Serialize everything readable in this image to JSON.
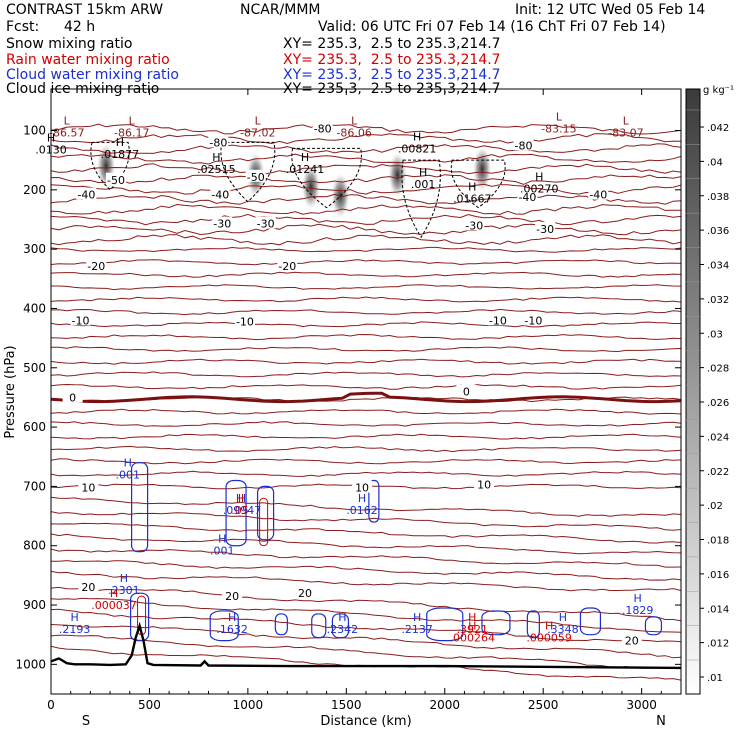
{
  "header": {
    "model": "CONTRAST 15km ARW",
    "org": "NCAR/MMM",
    "init": "Init: 12 UTC Wed 05 Feb 14",
    "fcst_label": "Fcst:",
    "fcst_value": "42 h",
    "valid": "Valid: 06 UTC Fri 07 Feb 14 (16 ChT Fri 07 Feb 14)"
  },
  "legend": [
    {
      "name": "Snow mixing ratio",
      "xy": "XY= 235.3,  2.5 to 235.3,214.7",
      "color": "#000000"
    },
    {
      "name": "Rain water mixing ratio",
      "xy": "XY= 235.3,  2.5 to 235.3,214.7",
      "color": "#d00000"
    },
    {
      "name": "Cloud water mixing ratio",
      "xy": "XY= 235.3,  2.5 to 235.3,214.7",
      "color": "#1a2fd0"
    },
    {
      "name": "Cloud ice mixing ratio",
      "xy": "XY= 235.3,  2.5 to 235.3,214.7",
      "color": "#000000"
    }
  ],
  "colorbar": {
    "unit": "g kg⁻¹",
    "ticks": [
      ".042",
      ".04",
      ".038",
      ".036",
      ".034",
      ".032",
      ".03",
      ".028",
      ".026",
      ".024",
      ".022",
      ".02",
      ".018",
      ".016",
      ".014",
      ".012",
      ".01"
    ]
  },
  "chart_data": {
    "type": "contour cross-section",
    "xlabel": "Distance (km)",
    "ylabel": "Pressure (hPa)",
    "xlim": [
      0,
      3200
    ],
    "ylim": [
      1050,
      30
    ],
    "xticks": [
      0,
      500,
      1000,
      1500,
      2000,
      2500,
      3000
    ],
    "yticks": [
      100,
      200,
      300,
      400,
      500,
      600,
      700,
      800,
      900,
      1000
    ],
    "x_end_labels": {
      "left": "S",
      "right": "N"
    },
    "temperature_contours": [
      {
        "label": "-80",
        "p": 97
      },
      {
        "label": "-50",
        "p": 183
      },
      {
        "label": "-40",
        "p": 210
      },
      {
        "label": "-30",
        "p": 260
      },
      {
        "label": "-20",
        "p": 330
      },
      {
        "label": "-10",
        "p": 420
      },
      {
        "label": "0",
        "p": 555
      },
      {
        "label": "10",
        "p": 700
      },
      {
        "label": "20",
        "p": 872
      }
    ],
    "contour_labels": [
      {
        "text": "-80",
        "x": 1380,
        "p": 97
      },
      {
        "text": "-80",
        "x": 850,
        "p": 120
      },
      {
        "text": "-80",
        "x": 2400,
        "p": 125
      },
      {
        "text": "-50",
        "x": 330,
        "p": 183
      },
      {
        "text": "-50",
        "x": 1040,
        "p": 178
      },
      {
        "text": "-40",
        "x": 180,
        "p": 208
      },
      {
        "text": "-40",
        "x": 860,
        "p": 208
      },
      {
        "text": "-40",
        "x": 2420,
        "p": 212
      },
      {
        "text": "-40",
        "x": 2780,
        "p": 208
      },
      {
        "text": "-30",
        "x": 870,
        "p": 257
      },
      {
        "text": "-30",
        "x": 1090,
        "p": 257
      },
      {
        "text": "-30",
        "x": 2150,
        "p": 260
      },
      {
        "text": "-30",
        "x": 2510,
        "p": 266
      },
      {
        "text": "-20",
        "x": 230,
        "p": 328
      },
      {
        "text": "-20",
        "x": 1200,
        "p": 328
      },
      {
        "text": "-10",
        "x": 150,
        "p": 420
      },
      {
        "text": "-10",
        "x": 985,
        "p": 422
      },
      {
        "text": "-10",
        "x": 2270,
        "p": 420
      },
      {
        "text": "-10",
        "x": 2450,
        "p": 420
      },
      {
        "text": "0",
        "x": 110,
        "p": 550
      },
      {
        "text": "0",
        "x": 2110,
        "p": 540
      },
      {
        "text": "10",
        "x": 190,
        "p": 702
      },
      {
        "text": "10",
        "x": 1580,
        "p": 702
      },
      {
        "text": "10",
        "x": 2200,
        "p": 697
      },
      {
        "text": "20",
        "x": 190,
        "p": 870
      },
      {
        "text": "20",
        "x": 920,
        "p": 885
      },
      {
        "text": "20",
        "x": 1290,
        "p": 880
      },
      {
        "text": "20",
        "x": 2950,
        "p": 960
      }
    ],
    "extrema": [
      {
        "mark": "L",
        "value": "-86.57",
        "x": 80,
        "p": 103,
        "color": "dark"
      },
      {
        "mark": "L",
        "value": "-86.17",
        "x": 410,
        "p": 103,
        "color": "dark"
      },
      {
        "mark": "L",
        "value": "-87.02",
        "x": 1050,
        "p": 103,
        "color": "dark"
      },
      {
        "mark": "L",
        "value": "-86.06",
        "x": 1540,
        "p": 103,
        "color": "dark"
      },
      {
        "mark": "L",
        "value": "-83.15",
        "x": 2580,
        "p": 97,
        "color": "dark"
      },
      {
        "mark": "L",
        "value": "-83.07",
        "x": 2920,
        "p": 103,
        "color": "dark"
      },
      {
        "mark": "H",
        "value": ".01877",
        "x": 350,
        "p": 140,
        "color": "black"
      },
      {
        "mark": "H",
        "value": ".02515",
        "x": 840,
        "p": 165,
        "color": "black"
      },
      {
        "mark": "H",
        "value": ".01241",
        "x": 1290,
        "p": 165,
        "color": "black"
      },
      {
        "mark": "H",
        "value": ".00821",
        "x": 1860,
        "p": 130,
        "color": "black"
      },
      {
        "mark": "H",
        "value": ".01667",
        "x": 2140,
        "p": 215,
        "color": "black"
      },
      {
        "mark": "H",
        "value": ".00270",
        "x": 2480,
        "p": 198,
        "color": "black"
      },
      {
        "mark": "H",
        "value": ".001",
        "x": 1890,
        "p": 190,
        "color": "black"
      },
      {
        "mark": "H",
        "value": ".0130",
        "x": 0,
        "p": 132,
        "color": "black"
      },
      {
        "mark": "H",
        "value": ".001",
        "x": 390,
        "p": 680,
        "color": "blue"
      },
      {
        "mark": "H",
        "value": ".09947",
        "x": 970,
        "p": 740,
        "color": "blue"
      },
      {
        "mark": "H",
        "value": ".0162",
        "x": 1580,
        "p": 740,
        "color": "blue"
      },
      {
        "mark": "H",
        "value": ".001",
        "x": 870,
        "p": 808,
        "color": "blue"
      },
      {
        "mark": "H",
        "value": ".2301",
        "x": 370,
        "p": 875,
        "color": "blue"
      },
      {
        "mark": "H",
        "value": ".2193",
        "x": 120,
        "p": 940,
        "color": "blue"
      },
      {
        "mark": "H",
        "value": ".1632",
        "x": 920,
        "p": 940,
        "color": "blue"
      },
      {
        "mark": "H",
        "value": ".2342",
        "x": 1480,
        "p": 940,
        "color": "blue"
      },
      {
        "mark": "H",
        "value": ".2137",
        "x": 1860,
        "p": 940,
        "color": "blue"
      },
      {
        "mark": "H",
        "value": ".3348",
        "x": 2600,
        "p": 940,
        "color": "blue"
      },
      {
        "mark": "H",
        "value": ".1829",
        "x": 2980,
        "p": 908,
        "color": "blue"
      },
      {
        "mark": "H",
        "value": ".000037",
        "x": 320,
        "p": 900,
        "color": "red"
      },
      {
        "mark": "H",
        "value": ".05",
        "x": 960,
        "p": 740,
        "color": "red"
      },
      {
        "mark": "H",
        "value": ".3921",
        "x": 2140,
        "p": 940,
        "color": "red"
      },
      {
        "mark": "H",
        "value": ".000264",
        "x": 2140,
        "p": 955,
        "color": "red"
      },
      {
        "mark": "H",
        "value": ".000059",
        "x": 2530,
        "p": 955,
        "color": "red"
      }
    ],
    "terrain": [
      [
        0,
        995
      ],
      [
        40,
        990
      ],
      [
        80,
        998
      ],
      [
        120,
        1000
      ],
      [
        200,
        1000
      ],
      [
        300,
        1001
      ],
      [
        380,
        1000
      ],
      [
        410,
        985
      ],
      [
        430,
        955
      ],
      [
        450,
        935
      ],
      [
        470,
        960
      ],
      [
        490,
        998
      ],
      [
        520,
        1001
      ],
      [
        760,
        1002
      ],
      [
        780,
        995
      ],
      [
        800,
        1002
      ],
      [
        1200,
        1003
      ],
      [
        1600,
        1003
      ],
      [
        2000,
        1003
      ],
      [
        2400,
        1004
      ],
      [
        2800,
        1005
      ],
      [
        3200,
        1006
      ]
    ],
    "shaded_snow_cores": [
      {
        "x": 1040,
        "p": 175
      },
      {
        "x": 1320,
        "p": 195
      },
      {
        "x": 1470,
        "p": 210
      },
      {
        "x": 2190,
        "p": 165
      },
      {
        "x": 1760,
        "p": 175
      },
      {
        "x": 280,
        "p": 160
      }
    ]
  }
}
